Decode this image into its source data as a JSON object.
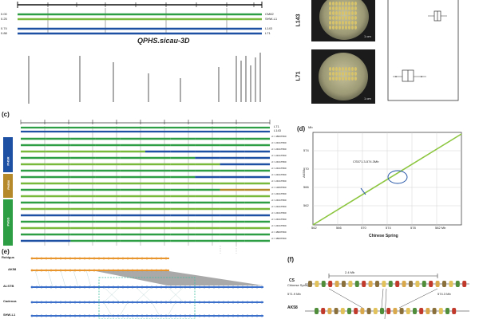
{
  "panel_a": {
    "cm_values": [
      "0.00",
      "0.25",
      "0.74",
      "0.88"
    ],
    "line_labels": [
      "CM82",
      "SHW-L1",
      "L143",
      "L71"
    ],
    "qtl_label": "QPHS.sicau-3D",
    "line_colors": [
      "#2e9e44",
      "#78b83a",
      "#1d4fa3",
      "#1d4fa3"
    ]
  },
  "panel_b": {
    "plate_labels": [
      "L143",
      "L71"
    ],
    "scale_text": "1 cm"
  },
  "panel_c": {
    "letter": "(c)",
    "top_labels": [
      "L71",
      "L143"
    ],
    "group_labels": [
      "PHSR",
      "PHSM",
      "PHSS"
    ],
    "group_colors": [
      "#1d4fa3",
      "#b5892a",
      "#2e9e44"
    ],
    "row_labels": [
      "d = 4860T800",
      "d = 2431T800",
      "d = 2431T800",
      "d = 2431T800",
      "d = 2431T800",
      "d = 2431T800",
      "d = 2431T800",
      "d = 2431T800",
      "d = 1306T800",
      "d = 2431T800",
      "d = 2431T800",
      "d = 2431T800",
      "d = 2431T800",
      "d = 2431T800",
      "d = 2431T800",
      "d = 4860T800",
      "d = 4860T800"
    ],
    "rows": [
      {
        "colors": [
          "#2e9e44",
          "#2e9e44",
          "#2e9e44",
          "#2e9e44",
          "#2e9e44",
          "#2e9e44",
          "#2e9e44",
          "#2e9e44",
          "#2e9e44",
          "#2e9e44"
        ]
      },
      {
        "colors": [
          "#2e9e44",
          "#2e9e44",
          "#2e9e44",
          "#2e9e44",
          "#2e9e44",
          "#2e9e44",
          "#2e9e44",
          "#2e9e44",
          "#2e9e44",
          "#2e9e44"
        ]
      },
      {
        "colors": [
          "#78b83a",
          "#78b83a",
          "#78b83a",
          "#78b83a",
          "#78b83a",
          "#1d4fa3",
          "#1d4fa3",
          "#1d4fa3",
          "#1d4fa3",
          "#1d4fa3"
        ]
      },
      {
        "colors": [
          "#2e9e44",
          "#2e9e44",
          "#2e9e44",
          "#2e9e44",
          "#2e9e44",
          "#2e9e44",
          "#2e9e44",
          "#1d4fa3",
          "#1d4fa3",
          "#1d4fa3"
        ]
      },
      {
        "colors": [
          "#78b83a",
          "#78b83a",
          "#78b83a",
          "#78b83a",
          "#78b83a",
          "#78b83a",
          "#78b83a",
          "#78b83a",
          "#1d4fa3",
          "#1d4fa3"
        ]
      },
      {
        "colors": [
          "#2e9e44",
          "#2e9e44",
          "#2e9e44",
          "#2e9e44",
          "#2e9e44",
          "#2e9e44",
          "#2e9e44",
          "#2e9e44",
          "#2e9e44",
          "#2e9e44"
        ]
      },
      {
        "colors": [
          "#2e9e44",
          "#2e9e44",
          "#2e9e44",
          "#2e9e44",
          "#2e9e44",
          "#2e9e44",
          "#2e9e44",
          "#1d4fa3",
          "#1d4fa3",
          "#1d4fa3"
        ]
      },
      {
        "colors": [
          "#78b83a",
          "#78b83a",
          "#78b83a",
          "#78b83a",
          "#78b83a",
          "#78b83a",
          "#78b83a",
          "#78b83a",
          "#78b83a",
          "#78b83a"
        ]
      },
      {
        "colors": [
          "#2e9e44",
          "#2e9e44",
          "#2e9e44",
          "#2e9e44",
          "#2e9e44",
          "#2e9e44",
          "#2e9e44",
          "#2e9e44",
          "#b5892a",
          "#b5892a"
        ]
      },
      {
        "colors": [
          "#78b83a",
          "#78b83a",
          "#78b83a",
          "#78b83a",
          "#78b83a",
          "#78b83a",
          "#78b83a",
          "#78b83a",
          "#78b83a",
          "#78b83a"
        ]
      },
      {
        "colors": [
          "#2e9e44",
          "#2e9e44",
          "#2e9e44",
          "#2e9e44",
          "#2e9e44",
          "#2e9e44",
          "#2e9e44",
          "#2e9e44",
          "#2e9e44",
          "#2e9e44"
        ]
      },
      {
        "colors": [
          "#78b83a",
          "#78b83a",
          "#78b83a",
          "#78b83a",
          "#78b83a",
          "#78b83a",
          "#78b83a",
          "#78b83a",
          "#78b83a",
          "#78b83a"
        ]
      },
      {
        "colors": [
          "#1d4fa3",
          "#1d4fa3",
          "#1d4fa3",
          "#1d4fa3",
          "#1d4fa3",
          "#1d4fa3",
          "#1d4fa3",
          "#1d4fa3",
          "#1d4fa3",
          "#1d4fa3"
        ]
      },
      {
        "colors": [
          "#2e9e44",
          "#2e9e44",
          "#2e9e44",
          "#2e9e44",
          "#2e9e44",
          "#2e9e44",
          "#2e9e44",
          "#2e9e44",
          "#2e9e44",
          "#2e9e44"
        ]
      },
      {
        "colors": [
          "#78b83a",
          "#78b83a",
          "#78b83a",
          "#78b83a",
          "#78b83a",
          "#78b83a",
          "#78b83a",
          "#78b83a",
          "#78b83a",
          "#78b83a"
        ]
      },
      {
        "colors": [
          "#2e9e44",
          "#2e9e44",
          "#2e9e44",
          "#2e9e44",
          "#2e9e44",
          "#2e9e44",
          "#2e9e44",
          "#2e9e44",
          "#2e9e44",
          "#2e9e44"
        ]
      },
      {
        "colors": [
          "#1d4fa3",
          "#1d4fa3",
          "#2e9e44",
          "#2e9e44",
          "#2e9e44",
          "#2e9e44",
          "#2e9e44",
          "#2e9e44",
          "#2e9e44",
          "#2e9e44"
        ]
      }
    ]
  },
  "panel_d": {
    "letter": "(d)",
    "xlabel": "Chinese Spring",
    "ylabel": "AK58",
    "ylabel_mb": "Mb",
    "annotation": "CS571.3-574.3Mb",
    "x_ticks": [
      "562",
      "566",
      "570",
      "574",
      "578",
      "582 Mb"
    ],
    "y_ticks": [
      "574",
      "570",
      "566",
      "562"
    ]
  },
  "panel_e": {
    "letter": "(e)",
    "genome_labels": [
      "Rubigus",
      "AK58",
      "ALSTB",
      "Cadenza",
      "SHW-L1"
    ]
  },
  "panel_f": {
    "letter": "(f)",
    "cs_label": "CS",
    "cs_sub": "Chinese Spring",
    "ak_label": "AK58",
    "span_text": "2.4 Mb",
    "left_pos": "571.9 Mb",
    "right_pos": "574.3 Mb"
  }
}
